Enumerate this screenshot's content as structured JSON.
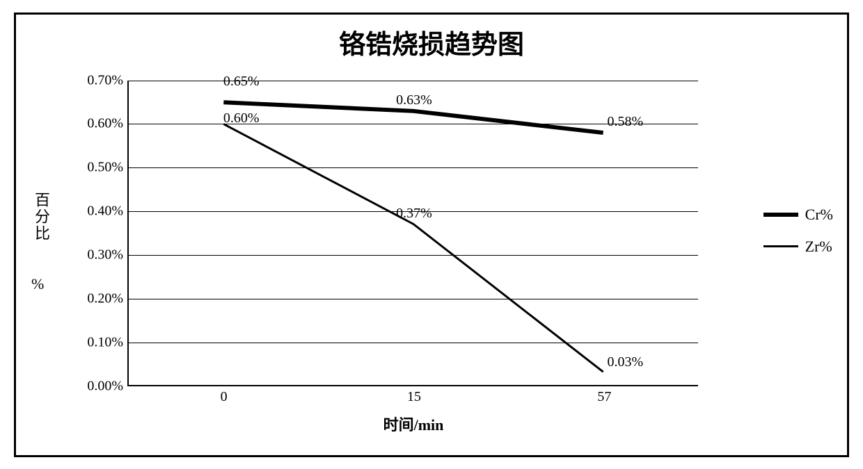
{
  "chart": {
    "type": "line",
    "title": "铬锆烧损趋势图",
    "title_fontsize": 38,
    "y_axis_label": "百分比",
    "y_axis_label_pct": "%",
    "x_axis_label": "时间/min",
    "background_color": "#ffffff",
    "border_color": "#000000",
    "grid_color": "#000000",
    "label_fontsize": 20,
    "ylim": [
      0.0,
      0.7
    ],
    "ytick_step": 0.1,
    "y_ticks": [
      "0.00%",
      "0.10%",
      "0.20%",
      "0.30%",
      "0.40%",
      "0.50%",
      "0.60%",
      "0.70%"
    ],
    "x_categories": [
      "0",
      "15",
      "57"
    ],
    "series": [
      {
        "name": "Cr%",
        "color": "#000000",
        "line_width": 6,
        "values": [
          0.65,
          0.63,
          0.58
        ],
        "labels": [
          "0.65%",
          "0.63%",
          "0.58%"
        ]
      },
      {
        "name": "Zr%",
        "color": "#000000",
        "line_width": 3,
        "values": [
          0.6,
          0.37,
          0.03
        ],
        "labels": [
          "0.60%",
          "0.37%",
          "0.03%"
        ]
      }
    ],
    "legend": {
      "position": "right",
      "items": [
        "Cr%",
        "Zr%"
      ]
    }
  }
}
